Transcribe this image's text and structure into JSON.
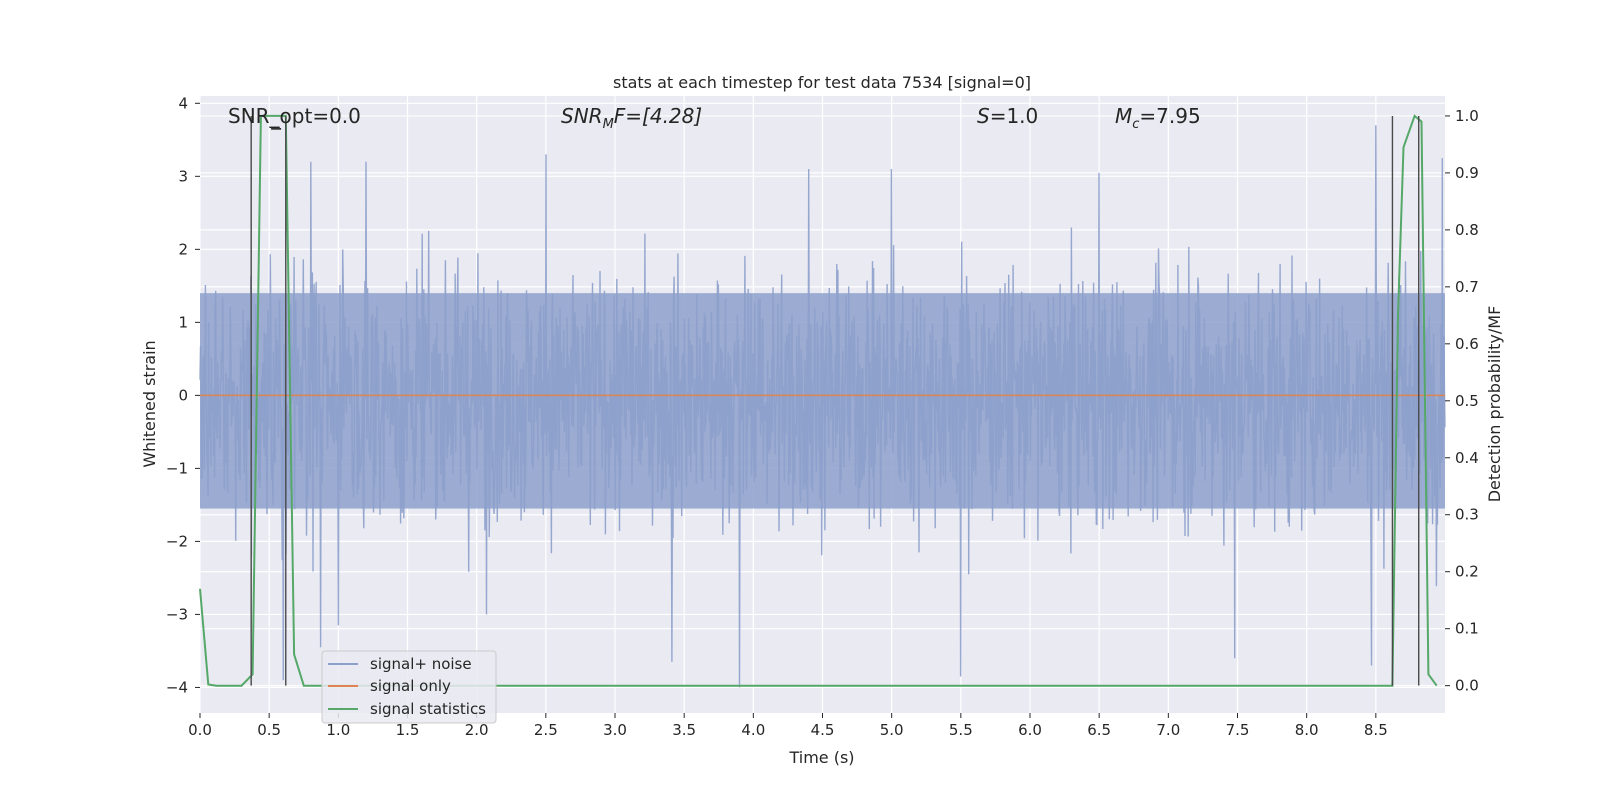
{
  "chart_data": {
    "type": "line",
    "title": "stats at each timestep for test data 7534 [signal=0]",
    "xlabel": "Time (s)",
    "ylabel": "Whitened strain",
    "y2label": "Detection probability/MF",
    "xlim": [
      0.0,
      9.0
    ],
    "ylim": [
      -4.35,
      4.1
    ],
    "y2lim": [
      -0.048,
      1.035
    ],
    "xticks": [
      "0.0",
      "0.5",
      "1.0",
      "1.5",
      "2.0",
      "2.5",
      "3.0",
      "3.5",
      "4.0",
      "4.5",
      "5.0",
      "5.5",
      "6.0",
      "6.5",
      "7.0",
      "7.5",
      "8.0",
      "8.5"
    ],
    "yticks": [
      "4",
      "3",
      "2",
      "1",
      "0",
      "−1",
      "−2",
      "−3",
      "−4"
    ],
    "y2ticks": [
      "1.0",
      "0.9",
      "0.8",
      "0.7",
      "0.6",
      "0.5",
      "0.4",
      "0.3",
      "0.2",
      "0.1",
      "0.0"
    ],
    "grid": true,
    "legend_placement": "lower-left",
    "background": "#eaeaf2",
    "annotations": {
      "snr_opt": "SNR_opt=0.0",
      "snr_mf_italic": "SNR",
      "snr_mf_sub": "M",
      "snr_mf_rest": "F=[4.28]",
      "s_italic": "S",
      "s_rest": "=1.0",
      "mc_italic": "M",
      "mc_sub": "c",
      "mc_rest": "=7.95"
    },
    "series": [
      {
        "name": "signal+ noise",
        "color": "#8da0cb",
        "kind": "noise",
        "sample_rate_points": 2304,
        "core_band": [
          -1.55,
          1.4
        ],
        "extreme_spikes": [
          {
            "x": 0.37,
            "y": -2.2
          },
          {
            "x": 0.6,
            "y": -3.9
          },
          {
            "x": 0.87,
            "y": -3.45
          },
          {
            "x": 1.0,
            "y": -3.15
          },
          {
            "x": 2.07,
            "y": -3.0
          },
          {
            "x": 3.41,
            "y": -3.65
          },
          {
            "x": 3.9,
            "y": -4.0
          },
          {
            "x": 5.5,
            "y": -3.85
          },
          {
            "x": 7.48,
            "y": -3.6
          },
          {
            "x": 8.47,
            "y": -3.7
          },
          {
            "x": 0.8,
            "y": 3.2
          },
          {
            "x": 1.2,
            "y": 3.2
          },
          {
            "x": 2.5,
            "y": 3.3
          },
          {
            "x": 4.4,
            "y": 3.1
          },
          {
            "x": 8.5,
            "y": 3.7
          },
          {
            "x": 8.98,
            "y": 3.25
          },
          {
            "x": 5.0,
            "y": 3.1
          },
          {
            "x": 6.5,
            "y": 3.05
          }
        ]
      },
      {
        "name": "signal only",
        "color": "#dd8452",
        "x": [
          0.0,
          9.0
        ],
        "y": [
          0.0,
          0.0
        ]
      },
      {
        "name": "signal statistics",
        "color": "#55a868",
        "axis": "right",
        "x": [
          0.0,
          0.06,
          0.12,
          0.3,
          0.38,
          0.44,
          0.62,
          0.68,
          0.75,
          8.62,
          8.66,
          8.7,
          8.78,
          8.83,
          8.88,
          8.94
        ],
        "y": [
          0.17,
          0.002,
          0.0,
          0.0,
          0.02,
          1.0,
          1.0,
          0.055,
          0.0,
          0.0,
          0.65,
          0.945,
          1.0,
          0.99,
          0.02,
          0.0
        ]
      }
    ],
    "vertical_lines": [
      0.37,
      0.62,
      8.62,
      8.81
    ],
    "marker": {
      "x": 0.55,
      "y": 3.65
    }
  }
}
